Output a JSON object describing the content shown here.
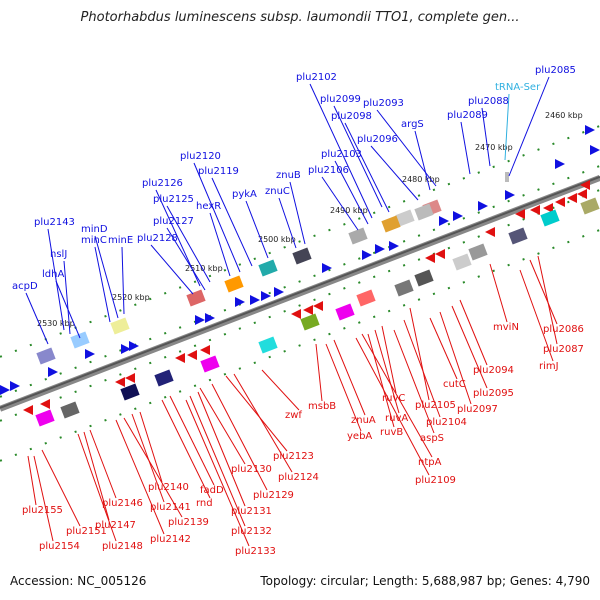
{
  "title": "Photorhabdus luminescens subsp. laumondii TTO1, complete gen...",
  "accession": "Accession: NC_005126",
  "summary": "Topology: circular; Length: 5,688,987 bp; Genes: 4,790",
  "scale_labels": [
    "2460 kbp",
    "2470 kbp",
    "2480 kbp",
    "2490 kbp",
    "2500 kbp",
    "2510 kbp",
    "2520 kbp",
    "2530 kbp"
  ],
  "upper_genes": [
    "plu2085",
    "tRNA-Ser",
    "plu2088",
    "plu2089",
    "plu2093",
    "argS",
    "plu2096",
    "plu2099",
    "plu2098",
    "plu2102",
    "plu2103",
    "plu2106",
    "znuB",
    "znuC",
    "pykA",
    "plu2120",
    "plu2119",
    "hexR",
    "plu2126",
    "plu2125",
    "plu2127",
    "plu2128",
    "minD",
    "minC",
    "minE",
    "plu2143",
    "hslJ",
    "ldhA",
    "acpD"
  ],
  "lower_genes": [
    "plu2086",
    "plu2087",
    "rimJ",
    "mviN",
    "plu2094",
    "plu2095",
    "plu2097",
    "cutC",
    "plu2105",
    "plu2104",
    "aspS",
    "ruvC",
    "ruvA",
    "ruvB",
    "znuA",
    "yebA",
    "ntpA",
    "plu2109",
    "msbB",
    "zwf",
    "plu2123",
    "plu2124",
    "plu2130",
    "plu2129",
    "plu2131",
    "plu2132",
    "plu2133",
    "fadD",
    "rnd",
    "plu2140",
    "plu2141",
    "plu2139",
    "plu2142",
    "plu2146",
    "plu2147",
    "plu2148",
    "plu2151",
    "plu2155",
    "plu2154"
  ],
  "colors": {
    "forward": "#1010e0",
    "reverse": "#e01010",
    "trna": "#30b0e0"
  }
}
